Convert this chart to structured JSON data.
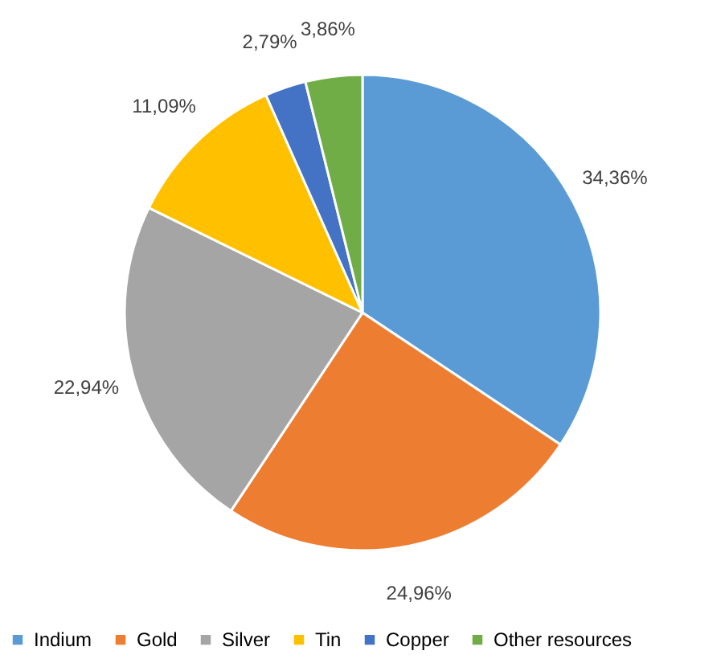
{
  "chart_data": {
    "type": "pie",
    "categories": [
      "Indium",
      "Gold",
      "Silver",
      "Tin",
      "Copper",
      "Other resources"
    ],
    "values": [
      34.36,
      24.96,
      22.94,
      11.09,
      2.79,
      3.86
    ],
    "colors": [
      "#5b9bd5",
      "#ed7d31",
      "#a5a5a5",
      "#ffc000",
      "#4472c4",
      "#70ad47"
    ],
    "value_labels": [
      "34,36%",
      "24,96%",
      "22,94%",
      "11,09%",
      "2,79%",
      "3,86%"
    ],
    "legend": "bottom"
  }
}
